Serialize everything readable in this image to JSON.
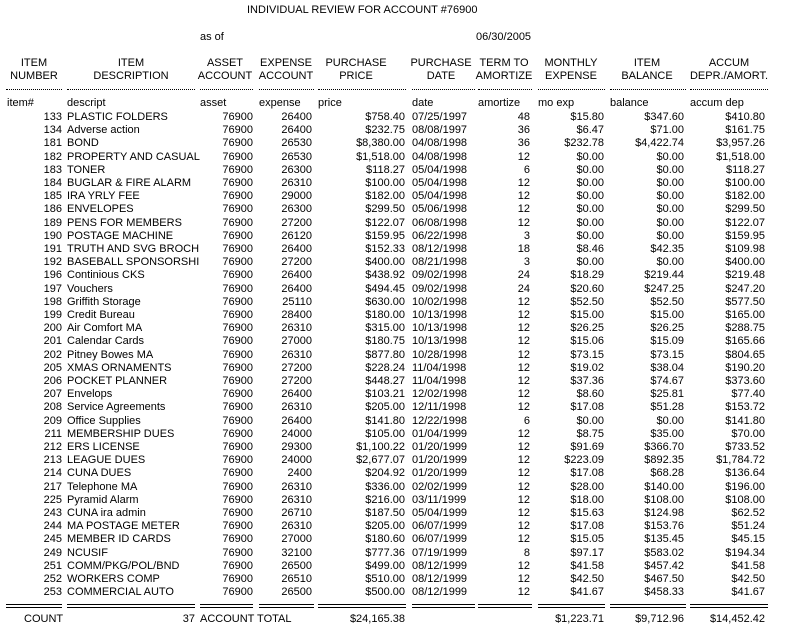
{
  "header": {
    "title": "INDIVIDUAL REVIEW FOR ACCOUNT #76900",
    "as_of_label": "as of",
    "as_of_date": "06/30/2005"
  },
  "columns": [
    {
      "title": [
        "ITEM",
        "NUMBER"
      ],
      "field": "item#"
    },
    {
      "title": [
        "ITEM",
        "DESCRIPTION"
      ],
      "field": "descript"
    },
    {
      "title": [
        "ASSET",
        "ACCOUNT"
      ],
      "field": "asset"
    },
    {
      "title": [
        "EXPENSE",
        "ACCOUNT"
      ],
      "field": "expense"
    },
    {
      "title": [
        "PURCHASE",
        "PRICE"
      ],
      "field": "price"
    },
    {
      "title": [
        "PURCHASE",
        "DATE"
      ],
      "field": "date"
    },
    {
      "title": [
        "TERM TO",
        "AMORTIZE"
      ],
      "field": "amortize"
    },
    {
      "title": [
        "MONTHLY",
        "EXPENSE"
      ],
      "field": "mo exp"
    },
    {
      "title": [
        "ITEM",
        "BALANCE"
      ],
      "field": "balance"
    },
    {
      "title": [
        "ACCUM",
        "DEPR./AMORT."
      ],
      "field": "accum dep"
    }
  ],
  "rows": [
    [
      "133",
      "PLASTIC FOLDERS",
      "76900",
      "26400",
      "$758.40",
      "07/25/1997",
      "48",
      "$15.80",
      "$347.60",
      "$410.80"
    ],
    [
      "134",
      "Adverse action",
      "76900",
      "26400",
      "$232.75",
      "08/08/1997",
      "36",
      "$6.47",
      "$71.00",
      "$161.75"
    ],
    [
      "181",
      "BOND",
      "76900",
      "26530",
      "$8,380.00",
      "04/08/1998",
      "36",
      "$232.78",
      "$4,422.74",
      "$3,957.26"
    ],
    [
      "182",
      "PROPERTY AND CASUAL",
      "76900",
      "26530",
      "$1,518.00",
      "04/08/1998",
      "12",
      "$0.00",
      "$0.00",
      "$1,518.00"
    ],
    [
      "183",
      "TONER",
      "76900",
      "26300",
      "$118.27",
      "05/04/1998",
      "6",
      "$0.00",
      "$0.00",
      "$118.27"
    ],
    [
      "184",
      "BUGLAR & FIRE ALARM",
      "76900",
      "26310",
      "$100.00",
      "05/04/1998",
      "12",
      "$0.00",
      "$0.00",
      "$100.00"
    ],
    [
      "185",
      "IRA YRLY FEE",
      "76900",
      "29000",
      "$182.00",
      "05/04/1998",
      "12",
      "$0.00",
      "$0.00",
      "$182.00"
    ],
    [
      "186",
      "ENVELOPES",
      "76900",
      "26300",
      "$299.50",
      "05/06/1998",
      "12",
      "$0.00",
      "$0.00",
      "$299.50"
    ],
    [
      "189",
      "PENS FOR MEMBERS",
      "76900",
      "27200",
      "$122.07",
      "06/08/1998",
      "12",
      "$0.00",
      "$0.00",
      "$122.07"
    ],
    [
      "190",
      "POSTAGE MACHINE",
      "76900",
      "26120",
      "$159.95",
      "06/22/1998",
      "3",
      "$0.00",
      "$0.00",
      "$159.95"
    ],
    [
      "191",
      "TRUTH AND SVG BROCH",
      "76900",
      "26400",
      "$152.33",
      "08/12/1998",
      "18",
      "$8.46",
      "$42.35",
      "$109.98"
    ],
    [
      "192",
      "BASEBALL SPONSORSHI",
      "76900",
      "27200",
      "$400.00",
      "08/21/1998",
      "3",
      "$0.00",
      "$0.00",
      "$400.00"
    ],
    [
      "196",
      "Continious CKS",
      "76900",
      "26400",
      "$438.92",
      "09/02/1998",
      "24",
      "$18.29",
      "$219.44",
      "$219.48"
    ],
    [
      "197",
      "Vouchers",
      "76900",
      "26400",
      "$494.45",
      "09/02/1998",
      "24",
      "$20.60",
      "$247.25",
      "$247.20"
    ],
    [
      "198",
      "Griffith Storage",
      "76900",
      "25110",
      "$630.00",
      "10/02/1998",
      "12",
      "$52.50",
      "$52.50",
      "$577.50"
    ],
    [
      "199",
      "Credit Bureau",
      "76900",
      "28400",
      "$180.00",
      "10/13/1998",
      "12",
      "$15.00",
      "$15.00",
      "$165.00"
    ],
    [
      "200",
      "Air Comfort MA",
      "76900",
      "26310",
      "$315.00",
      "10/13/1998",
      "12",
      "$26.25",
      "$26.25",
      "$288.75"
    ],
    [
      "201",
      "Calendar Cards",
      "76900",
      "27000",
      "$180.75",
      "10/13/1998",
      "12",
      "$15.06",
      "$15.09",
      "$165.66"
    ],
    [
      "202",
      "Pitney Bowes MA",
      "76900",
      "26310",
      "$877.80",
      "10/28/1998",
      "12",
      "$73.15",
      "$73.15",
      "$804.65"
    ],
    [
      "205",
      "XMAS ORNAMENTS",
      "76900",
      "27200",
      "$228.24",
      "11/04/1998",
      "12",
      "$19.02",
      "$38.04",
      "$190.20"
    ],
    [
      "206",
      "POCKET PLANNER",
      "76900",
      "27200",
      "$448.27",
      "11/04/1998",
      "12",
      "$37.36",
      "$74.67",
      "$373.60"
    ],
    [
      "207",
      "Envelops",
      "76900",
      "26400",
      "$103.21",
      "12/02/1998",
      "12",
      "$8.60",
      "$25.81",
      "$77.40"
    ],
    [
      "208",
      "Service Agreements",
      "76900",
      "26310",
      "$205.00",
      "12/11/1998",
      "12",
      "$17.08",
      "$51.28",
      "$153.72"
    ],
    [
      "209",
      "Office Supplies",
      "76900",
      "26400",
      "$141.80",
      "12/22/1998",
      "6",
      "$0.00",
      "$0.00",
      "$141.80"
    ],
    [
      "211",
      "MEMBERSHIP DUES",
      "76900",
      "24000",
      "$105.00",
      "01/04/1999",
      "12",
      "$8.75",
      "$35.00",
      "$70.00"
    ],
    [
      "212",
      "ERS LICENSE",
      "76900",
      "29300",
      "$1,100.22",
      "01/20/1999",
      "12",
      "$91.69",
      "$366.70",
      "$733.52"
    ],
    [
      "213",
      "LEAGUE DUES",
      "76900",
      "24000",
      "$2,677.07",
      "01/20/1999",
      "12",
      "$223.09",
      "$892.35",
      "$1,784.72"
    ],
    [
      "214",
      "CUNA DUES",
      "76900",
      "2400",
      "$204.92",
      "01/20/1999",
      "12",
      "$17.08",
      "$68.28",
      "$136.64"
    ],
    [
      "217",
      "Telephone MA",
      "76900",
      "26310",
      "$336.00",
      "02/02/1999",
      "12",
      "$28.00",
      "$140.00",
      "$196.00"
    ],
    [
      "225",
      "Pyramid Alarm",
      "76900",
      "26310",
      "$216.00",
      "03/11/1999",
      "12",
      "$18.00",
      "$108.00",
      "$108.00"
    ],
    [
      "243",
      "CUNA ira admin",
      "76900",
      "26710",
      "$187.50",
      "05/04/1999",
      "12",
      "$15.63",
      "$124.98",
      "$62.52"
    ],
    [
      "244",
      "MA POSTAGE METER",
      "76900",
      "26310",
      "$205.00",
      "06/07/1999",
      "12",
      "$17.08",
      "$153.76",
      "$51.24"
    ],
    [
      "245",
      "MEMBER ID CARDS",
      "76900",
      "27000",
      "$180.60",
      "06/07/1999",
      "12",
      "$15.05",
      "$135.45",
      "$45.15"
    ],
    [
      "249",
      "NCUSIF",
      "76900",
      "32100",
      "$777.36",
      "07/19/1999",
      "8",
      "$97.17",
      "$583.02",
      "$194.34"
    ],
    [
      "251",
      "COMM/PKG/POL/BND",
      "76900",
      "26500",
      "$499.00",
      "08/12/1999",
      "12",
      "$41.58",
      "$457.42",
      "$41.58"
    ],
    [
      "252",
      "WORKERS COMP",
      "76900",
      "26510",
      "$510.00",
      "08/12/1999",
      "12",
      "$42.50",
      "$467.50",
      "$42.50"
    ],
    [
      "253",
      "COMMERCIAL AUTO",
      "76900",
      "26500",
      "$500.00",
      "08/12/1999",
      "12",
      "$41.67",
      "$458.33",
      "$41.67"
    ]
  ],
  "footer": {
    "count_label": "COUNT",
    "count": "37",
    "total_label": "ACCOUNT TOTAL",
    "price": "$24,165.38",
    "mo_exp": "$1,223.71",
    "balance": "$9,712.96",
    "accum": "$14,452.42"
  }
}
